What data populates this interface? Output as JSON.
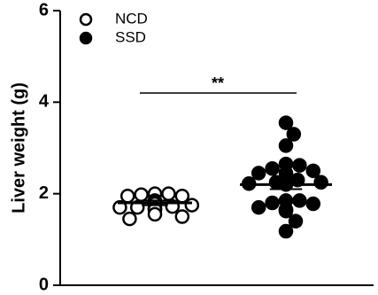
{
  "chart_data": {
    "type": "scatter",
    "title": "",
    "xlabel": "",
    "ylabel": "Liver weight (g)",
    "ylim": [
      0,
      6
    ],
    "yticks": [
      0,
      2,
      4,
      6
    ],
    "legend_position": "top-left",
    "significance": "**",
    "series": [
      {
        "name": "NCD",
        "marker": "open-circle",
        "mean": 1.8,
        "sem": 0.05,
        "values": [
          1.95,
          2.0,
          1.98,
          2.0,
          1.95,
          1.75,
          1.78,
          1.8,
          1.82,
          1.85,
          1.8,
          1.8,
          1.78,
          1.65,
          1.68,
          1.7,
          1.72,
          1.7,
          1.68,
          1.5,
          1.55,
          1.45
        ]
      },
      {
        "name": "SSD",
        "marker": "filled-circle",
        "mean": 2.2,
        "sem": 0.1,
        "values": [
          3.55,
          3.05,
          3.3,
          2.65,
          2.55,
          2.62,
          2.5,
          2.45,
          2.45,
          2.3,
          2.25,
          2.25,
          2.22,
          2.2,
          1.85,
          1.85,
          1.8,
          1.78,
          1.7,
          1.65,
          1.65,
          1.62,
          1.4,
          1.18
        ]
      }
    ]
  }
}
